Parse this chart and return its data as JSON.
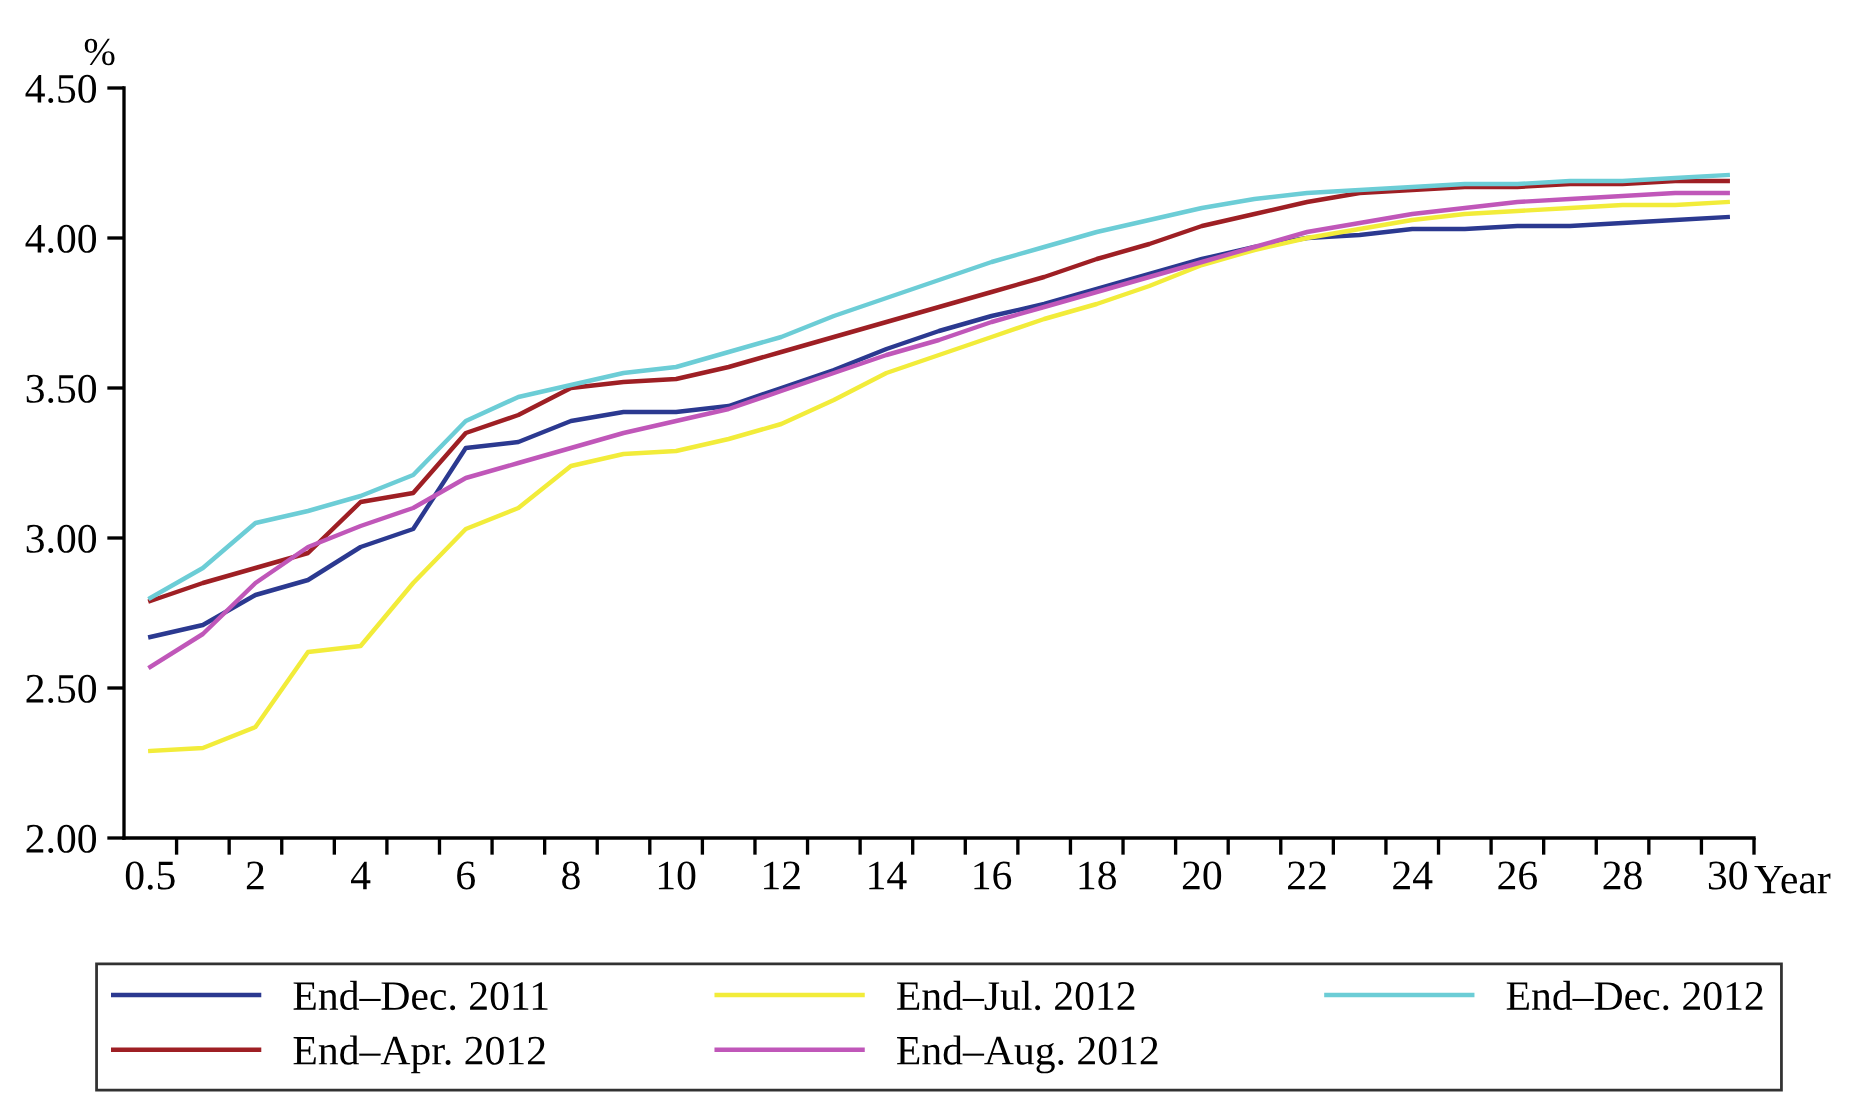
{
  "chart_data": {
    "type": "line",
    "ylabel": "%",
    "xlabel": "Year",
    "categories": [
      "0.5",
      null,
      "2",
      null,
      "4",
      null,
      "6",
      null,
      "8",
      null,
      "10",
      null,
      "12",
      null,
      "14",
      null,
      "16",
      null,
      "18",
      null,
      "20",
      null,
      "22",
      null,
      "24",
      null,
      "26",
      null,
      "28",
      null,
      "30"
    ],
    "ylim": [
      2.0,
      4.5
    ],
    "yticks": [
      {
        "value": 2.0,
        "label": "2.00"
      },
      {
        "value": 2.5,
        "label": "2.50"
      },
      {
        "value": 3.0,
        "label": "3.00"
      },
      {
        "value": 3.5,
        "label": "3.50"
      },
      {
        "value": 4.0,
        "label": "4.00"
      },
      {
        "value": 4.5,
        "label": "4.50"
      }
    ],
    "grid": false,
    "legend": "bottom",
    "marker": "none",
    "line_style": "solid",
    "series": [
      {
        "name": "End–Dec. 2011",
        "color": "#2b3990",
        "values": [
          2.67,
          2.71,
          2.81,
          2.86,
          2.97,
          3.03,
          3.3,
          3.32,
          3.39,
          3.42,
          3.42,
          3.44,
          3.5,
          3.56,
          3.63,
          3.69,
          3.74,
          3.78,
          3.83,
          3.88,
          3.93,
          3.97,
          4.0,
          4.01,
          4.03,
          4.03,
          4.04,
          4.04,
          4.05,
          4.06,
          4.07
        ]
      },
      {
        "name": "End–Apr. 2012",
        "color": "#9e1f24",
        "values": [
          2.79,
          2.85,
          2.9,
          2.95,
          3.12,
          3.15,
          3.35,
          3.41,
          3.5,
          3.52,
          3.53,
          3.57,
          3.62,
          3.67,
          3.72,
          3.77,
          3.82,
          3.87,
          3.93,
          3.98,
          4.04,
          4.08,
          4.12,
          4.15,
          4.16,
          4.17,
          4.17,
          4.18,
          4.18,
          4.19,
          4.19
        ]
      },
      {
        "name": "End–Jul. 2012",
        "color": "#f2ec3a",
        "values": [
          2.29,
          2.3,
          2.37,
          2.62,
          2.64,
          2.85,
          3.03,
          3.1,
          3.24,
          3.28,
          3.29,
          3.33,
          3.38,
          3.46,
          3.55,
          3.61,
          3.67,
          3.73,
          3.78,
          3.84,
          3.91,
          3.96,
          4.0,
          4.03,
          4.06,
          4.08,
          4.09,
          4.1,
          4.11,
          4.11,
          4.12
        ]
      },
      {
        "name": "End–Aug. 2012",
        "color": "#c057b9",
        "values": [
          2.57,
          2.68,
          2.85,
          2.97,
          3.04,
          3.1,
          3.2,
          3.25,
          3.3,
          3.35,
          3.39,
          3.43,
          3.49,
          3.55,
          3.61,
          3.66,
          3.72,
          3.77,
          3.82,
          3.87,
          3.92,
          3.97,
          4.02,
          4.05,
          4.08,
          4.1,
          4.12,
          4.13,
          4.14,
          4.15,
          4.15
        ]
      },
      {
        "name": "End–Dec. 2012",
        "color": "#6ccdd6",
        "values": [
          2.8,
          2.9,
          3.05,
          3.09,
          3.14,
          3.21,
          3.39,
          3.47,
          3.51,
          3.55,
          3.57,
          3.62,
          3.67,
          3.74,
          3.8,
          3.86,
          3.92,
          3.97,
          4.02,
          4.06,
          4.1,
          4.13,
          4.15,
          4.16,
          4.17,
          4.18,
          4.18,
          4.19,
          4.19,
          4.2,
          4.21
        ]
      }
    ]
  }
}
